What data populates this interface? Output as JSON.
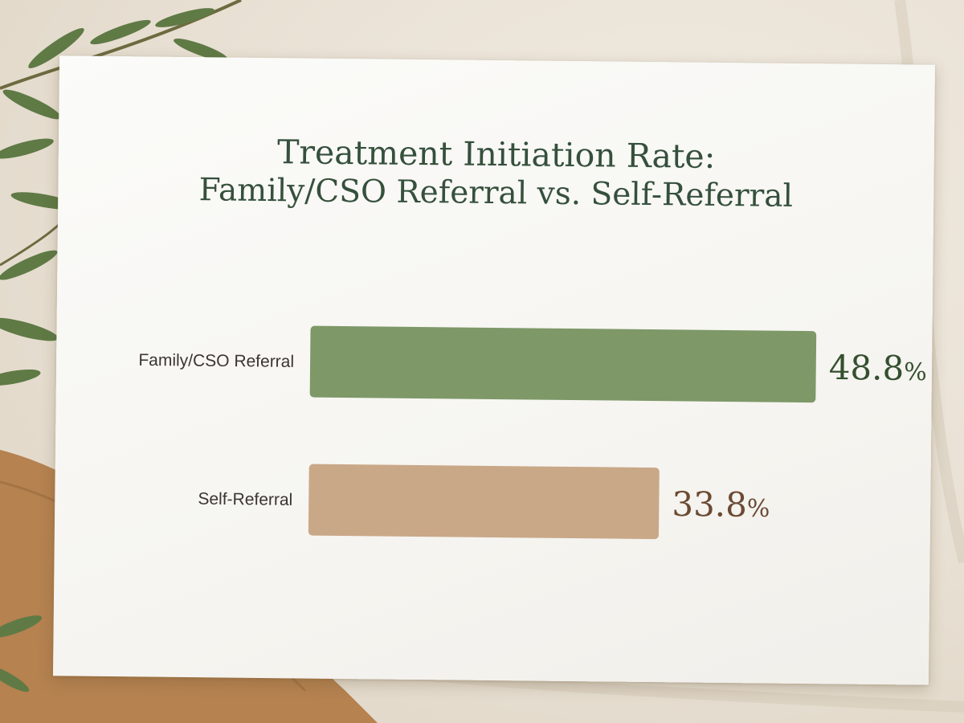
{
  "chart_data": {
    "type": "bar",
    "orientation": "horizontal",
    "title": "Treatment Initiation Rate:",
    "subtitle": "Family/CSO Referral vs. Self-Referral",
    "categories": [
      "Family/CSO Referral",
      "Self-Referral"
    ],
    "values": [
      48.8,
      33.8
    ],
    "value_labels": [
      "48.8",
      "33.8"
    ],
    "value_unit": "%",
    "xlim": [
      0,
      62
    ],
    "grid": false,
    "colors": [
      "#7e9868",
      "#c9a888"
    ],
    "label_colors": [
      "#34502f",
      "#6b4a34"
    ]
  }
}
